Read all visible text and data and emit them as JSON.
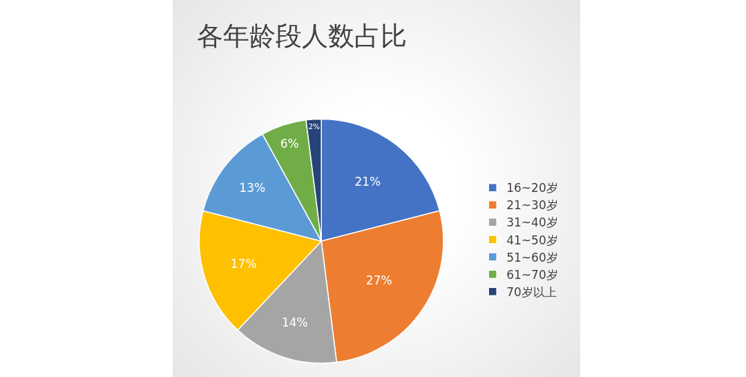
{
  "chart_data": {
    "type": "pie",
    "title": "各年龄段人数占比",
    "categories": [
      "16~20岁",
      "21~30岁",
      "31~40岁",
      "41~50岁",
      "51~60岁",
      "61~70岁",
      "70岁以上"
    ],
    "values": [
      21,
      27,
      14,
      17,
      13,
      6,
      2
    ],
    "colors": [
      "#4472c4",
      "#ed7d31",
      "#a5a5a5",
      "#ffc000",
      "#5b9bd5",
      "#70ad47",
      "#264478"
    ],
    "value_labels": [
      "21%",
      "27%",
      "14%",
      "17%",
      "13%",
      "6%",
      "2%"
    ],
    "legend": "right"
  }
}
